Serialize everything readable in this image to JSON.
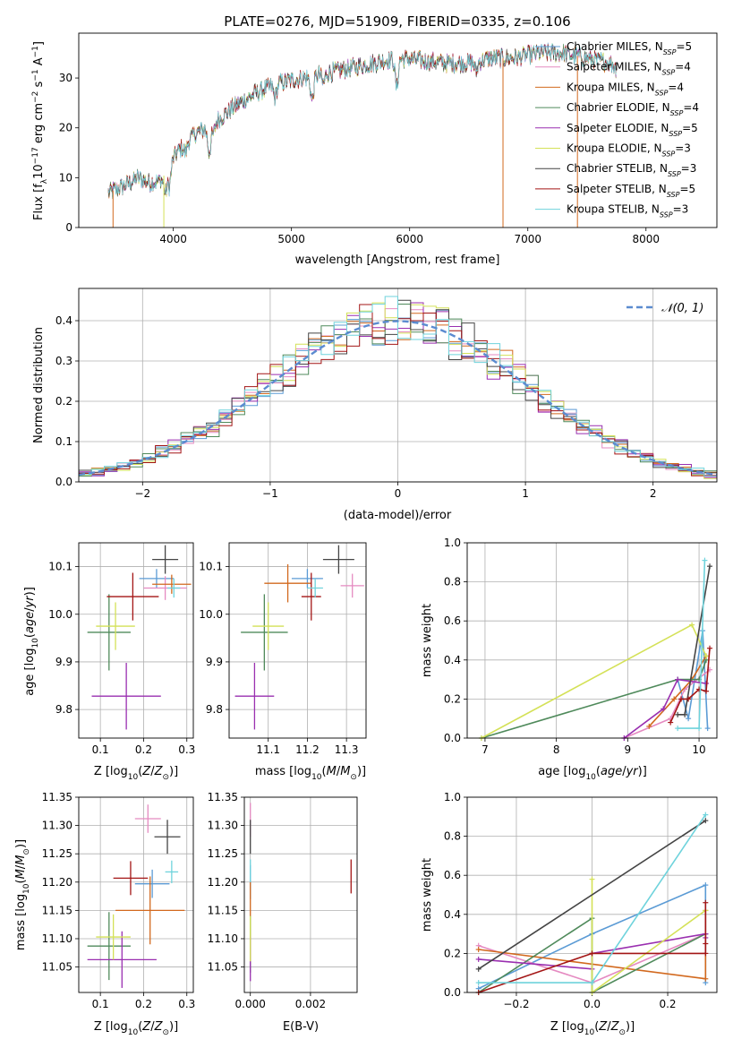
{
  "colors": {
    "miles_chabrier": "#5b9bd5",
    "miles_salpeter": "#e58ac1",
    "miles_kroupa": "#d2691e",
    "elodie_chabrier": "#4f8a5b",
    "elodie_salpeter": "#9a2fb0",
    "elodie_kroupa": "#d4e157",
    "stelib_chabrier": "#444444",
    "stelib_salpeter": "#a31515",
    "stelib_kroupa": "#6fd3dc",
    "gauss_line": "#5b8bd0",
    "grid": "#b0b0b0"
  },
  "chart_data": [
    {
      "id": "spectrum",
      "type": "line",
      "title": "PLATE=0276, MJD=51909, FIBERID=0335, z=0.106",
      "xlabel": "wavelength [Angstrom, rest frame]",
      "ylabel": "Flux [f_λ10^-17 erg cm^-2 s^-1 A^-1]",
      "xlim": [
        3200,
        8600
      ],
      "ylim": [
        0,
        39
      ],
      "xticks": [
        4000,
        5000,
        6000,
        7000,
        8000
      ],
      "yticks": [
        0,
        10,
        20,
        30
      ],
      "grid": false,
      "legend_position": "right",
      "legend": [
        {
          "label": "Chabrier MILES, N",
          "sub": "SSP",
          "tail": "=5",
          "color": "miles_chabrier"
        },
        {
          "label": "Salpeter MILES, N",
          "sub": "SSP",
          "tail": "=4",
          "color": "miles_salpeter"
        },
        {
          "label": "Kroupa MILES, N",
          "sub": "SSP",
          "tail": "=4",
          "color": "miles_kroupa"
        },
        {
          "label": "Chabrier ELODIE, N",
          "sub": "SSP",
          "tail": "=4",
          "color": "elodie_chabrier"
        },
        {
          "label": "Salpeter ELODIE, N",
          "sub": "SSP",
          "tail": "=5",
          "color": "elodie_salpeter"
        },
        {
          "label": "Kroupa ELODIE, N",
          "sub": "SSP",
          "tail": "=3",
          "color": "elodie_kroupa"
        },
        {
          "label": "Chabrier STELIB, N",
          "sub": "SSP",
          "tail": "=3",
          "color": "stelib_chabrier"
        },
        {
          "label": "Salpeter STELIB, N",
          "sub": "SSP",
          "tail": "=5",
          "color": "stelib_salpeter"
        },
        {
          "label": "Kroupa STELIB, N",
          "sub": "SSP",
          "tail": "=3",
          "color": "stelib_kroupa"
        }
      ],
      "continuum": {
        "x": [
          3450,
          3600,
          3700,
          3800,
          3900,
          4000,
          4100,
          4200,
          4300,
          4500,
          4700,
          4900,
          5100,
          5300,
          5500,
          5700,
          5900,
          6100,
          6300,
          6500,
          6700,
          6900,
          7100,
          7300,
          7400,
          7500,
          7600,
          7700,
          7750
        ],
        "y": [
          7,
          8.5,
          10,
          9,
          9.5,
          14,
          17,
          19,
          20,
          24,
          27,
          29,
          30,
          31,
          32,
          33,
          34,
          33.5,
          33,
          33,
          34,
          34,
          35,
          35,
          34.5,
          34,
          33.5,
          33,
          32
        ]
      },
      "absorption_lines": [
        {
          "x": 3934,
          "depth": 4
        },
        {
          "x": 3968,
          "depth": 4
        },
        {
          "x": 4102,
          "depth": 2
        },
        {
          "x": 4304,
          "depth": 5
        },
        {
          "x": 4340,
          "depth": 2
        },
        {
          "x": 4861,
          "depth": 2.5
        },
        {
          "x": 5175,
          "depth": 5
        },
        {
          "x": 5270,
          "depth": 2
        },
        {
          "x": 5890,
          "depth": 6
        },
        {
          "x": 6563,
          "depth": 2
        }
      ],
      "spikes": [
        {
          "x": 3490,
          "color": "miles_kroupa"
        },
        {
          "x": 3920,
          "color": "elodie_kroupa"
        },
        {
          "x": 6790,
          "color": "miles_kroupa"
        },
        {
          "x": 7420,
          "color": "miles_kroupa"
        }
      ]
    },
    {
      "id": "residuals",
      "type": "step",
      "xlabel": "(data-model)/error",
      "ylabel": "Normed distribution",
      "xlim": [
        -2.5,
        2.5
      ],
      "ylim": [
        0,
        0.48
      ],
      "xticks": [
        -2,
        -1,
        0,
        1,
        2
      ],
      "yticks": [
        0.0,
        0.1,
        0.2,
        0.3,
        0.4
      ],
      "grid": true,
      "legend_position": "top-right",
      "legend": [
        {
          "label": "𝒩(0, 1)",
          "color": "gauss_line",
          "dashed": true
        }
      ],
      "bin_width": 0.1
    },
    {
      "id": "age_vs_Z",
      "type": "errorbar",
      "xlabel": "Z [log10(Z/Z⊙)]",
      "ylabel": "age  [log10(age/yr)]",
      "xlim": [
        0.05,
        0.315
      ],
      "ylim": [
        9.74,
        10.15
      ],
      "xticks": [
        0.1,
        0.2,
        0.3
      ],
      "yticks": [
        9.8,
        9.9,
        10.0,
        10.1
      ],
      "grid": true,
      "points": [
        {
          "c": "miles_chabrier",
          "x": 0.23,
          "xe": 0.04,
          "y": 10.075,
          "ye": 0.02
        },
        {
          "c": "miles_salpeter",
          "x": 0.25,
          "xe": 0.05,
          "y": 10.055,
          "ye": 0.025
        },
        {
          "c": "miles_kroupa",
          "x": 0.265,
          "xe": 0.045,
          "y": 10.063,
          "ye": 0.02
        },
        {
          "c": "elodie_chabrier",
          "x": 0.12,
          "xe": 0.05,
          "y": 9.962,
          "ye": 0.08
        },
        {
          "c": "elodie_salpeter",
          "x": 0.16,
          "xe": 0.08,
          "y": 9.828,
          "ye": 0.07
        },
        {
          "c": "elodie_kroupa",
          "x": 0.135,
          "xe": 0.045,
          "y": 9.975,
          "ye": 0.05
        },
        {
          "c": "stelib_chabrier",
          "x": 0.25,
          "xe": 0.03,
          "y": 10.115,
          "ye": 0.03
        },
        {
          "c": "stelib_salpeter",
          "x": 0.175,
          "xe": 0.06,
          "y": 10.037,
          "ye": 0.05
        },
        {
          "c": "stelib_kroupa",
          "x": 0.27,
          "xe": 0.015,
          "y": 10.055,
          "ye": 0.02
        }
      ]
    },
    {
      "id": "age_vs_mass",
      "type": "errorbar",
      "xlabel": "mass [log10(M/M⊙)]",
      "ylabel": "",
      "xlim": [
        11.0,
        11.35
      ],
      "ylim": [
        9.74,
        10.15
      ],
      "xticks": [
        11.1,
        11.2,
        11.3
      ],
      "yticks": [
        9.8,
        9.9,
        10.0,
        10.1
      ],
      "grid": true,
      "points": [
        {
          "c": "miles_chabrier",
          "x": 11.2,
          "xe": 0.04,
          "y": 10.075,
          "ye": 0.02
        },
        {
          "c": "miles_salpeter",
          "x": 11.315,
          "xe": 0.03,
          "y": 10.06,
          "ye": 0.025
        },
        {
          "c": "miles_kroupa",
          "x": 11.15,
          "xe": 0.06,
          "y": 10.065,
          "ye": 0.04
        },
        {
          "c": "elodie_chabrier",
          "x": 11.09,
          "xe": 0.06,
          "y": 9.962,
          "ye": 0.08
        },
        {
          "c": "elodie_salpeter",
          "x": 11.065,
          "xe": 0.05,
          "y": 9.828,
          "ye": 0.07
        },
        {
          "c": "elodie_kroupa",
          "x": 11.1,
          "xe": 0.04,
          "y": 9.975,
          "ye": 0.05
        },
        {
          "c": "stelib_chabrier",
          "x": 11.28,
          "xe": 0.04,
          "y": 10.115,
          "ye": 0.03
        },
        {
          "c": "stelib_salpeter",
          "x": 11.21,
          "xe": 0.025,
          "y": 10.037,
          "ye": 0.05
        },
        {
          "c": "stelib_kroupa",
          "x": 11.22,
          "xe": 0.02,
          "y": 10.055,
          "ye": 0.02
        }
      ]
    },
    {
      "id": "weight_vs_age",
      "type": "line",
      "xlabel": "age  [log10(age/yr)]",
      "ylabel": "mass weight",
      "xlim": [
        6.75,
        10.25
      ],
      "ylim": [
        0,
        1.0
      ],
      "xticks": [
        7,
        8,
        9,
        10
      ],
      "yticks": [
        0.0,
        0.2,
        0.4,
        0.6,
        0.8,
        1.0
      ],
      "grid": true,
      "series": [
        {
          "c": "miles_chabrier",
          "x": [
            9.7,
            9.85,
            10.05,
            10.12
          ],
          "y": [
            0.3,
            0.1,
            0.55,
            0.05
          ]
        },
        {
          "c": "miles_salpeter",
          "x": [
            8.95,
            9.6,
            9.8,
            10.15
          ],
          "y": [
            0.0,
            0.1,
            0.25,
            0.35
          ]
        },
        {
          "c": "miles_kroupa",
          "x": [
            9.3,
            9.65,
            9.9,
            10.1
          ],
          "y": [
            0.06,
            0.2,
            0.3,
            0.42
          ]
        },
        {
          "c": "elodie_chabrier",
          "x": [
            6.95,
            9.7,
            10.0,
            10.1
          ],
          "y": [
            0.0,
            0.3,
            0.3,
            0.4
          ]
        },
        {
          "c": "elodie_salpeter",
          "x": [
            8.95,
            9.5,
            9.7,
            10.1
          ],
          "y": [
            0.0,
            0.15,
            0.3,
            0.28
          ]
        },
        {
          "c": "elodie_kroupa",
          "x": [
            6.95,
            9.9,
            10.1
          ],
          "y": [
            0.0,
            0.58,
            0.42
          ]
        },
        {
          "c": "stelib_chabrier",
          "x": [
            9.7,
            9.8,
            10.15
          ],
          "y": [
            0.12,
            0.12,
            0.88
          ]
        },
        {
          "c": "stelib_salpeter",
          "x": [
            9.6,
            9.75,
            9.85,
            10.0,
            10.1,
            10.15
          ],
          "y": [
            0.08,
            0.2,
            0.2,
            0.25,
            0.24,
            0.46
          ]
        },
        {
          "c": "stelib_kroupa",
          "x": [
            9.7,
            10.0,
            10.08
          ],
          "y": [
            0.05,
            0.05,
            0.91
          ]
        }
      ]
    },
    {
      "id": "mass_vs_Z",
      "type": "errorbar",
      "xlabel": "Z [log10(Z/Z⊙)]",
      "ylabel": "mass [log10(M/M⊙)]",
      "xlim": [
        0.05,
        0.315
      ],
      "ylim": [
        11.005,
        11.35
      ],
      "xticks": [
        0.1,
        0.2,
        0.3
      ],
      "yticks": [
        11.05,
        11.1,
        11.15,
        11.2,
        11.25,
        11.3,
        11.35
      ],
      "grid": true,
      "points": [
        {
          "c": "miles_chabrier",
          "x": 0.22,
          "xe": 0.04,
          "y": 11.197,
          "ye": 0.025
        },
        {
          "c": "miles_salpeter",
          "x": 0.21,
          "xe": 0.03,
          "y": 11.312,
          "ye": 0.025
        },
        {
          "c": "miles_kroupa",
          "x": 0.215,
          "xe": 0.08,
          "y": 11.15,
          "ye": 0.06
        },
        {
          "c": "elodie_chabrier",
          "x": 0.12,
          "xe": 0.05,
          "y": 11.087,
          "ye": 0.06
        },
        {
          "c": "elodie_salpeter",
          "x": 0.15,
          "xe": 0.08,
          "y": 11.063,
          "ye": 0.05
        },
        {
          "c": "elodie_kroupa",
          "x": 0.13,
          "xe": 0.04,
          "y": 11.103,
          "ye": 0.04
        },
        {
          "c": "stelib_chabrier",
          "x": 0.255,
          "xe": 0.03,
          "y": 11.28,
          "ye": 0.03
        },
        {
          "c": "stelib_salpeter",
          "x": 0.17,
          "xe": 0.04,
          "y": 11.207,
          "ye": 0.03
        },
        {
          "c": "stelib_kroupa",
          "x": 0.265,
          "xe": 0.015,
          "y": 11.218,
          "ye": 0.02
        }
      ]
    },
    {
      "id": "mass_vs_ebv",
      "type": "errorbar",
      "xlabel": "E(B-V)",
      "ylabel": "",
      "xlim": [
        -0.0002,
        0.00355
      ],
      "ylim": [
        11.005,
        11.35
      ],
      "xticks": [
        0.0,
        0.002
      ],
      "xtick_labels": [
        "0.000",
        "0.002"
      ],
      "yticks": [
        11.05,
        11.1,
        11.15,
        11.2,
        11.25,
        11.3,
        11.35
      ],
      "grid": true,
      "points": [
        {
          "c": "miles_chabrier",
          "x": 0.0,
          "xe": 0,
          "y": 11.2,
          "ye": 0.03
        },
        {
          "c": "miles_salpeter",
          "x": 0.0,
          "xe": 0,
          "y": 11.31,
          "ye": 0.03
        },
        {
          "c": "miles_kroupa",
          "x": 0.0,
          "xe": 0,
          "y": 11.15,
          "ye": 0.05
        },
        {
          "c": "elodie_chabrier",
          "x": 0.0,
          "xe": 0,
          "y": 11.09,
          "ye": 0.05
        },
        {
          "c": "elodie_salpeter",
          "x": 0.0,
          "xe": 0,
          "y": 11.065,
          "ye": 0.04
        },
        {
          "c": "elodie_kroupa",
          "x": 0.0,
          "xe": 0,
          "y": 11.1,
          "ye": 0.04
        },
        {
          "c": "stelib_chabrier",
          "x": 0.0,
          "xe": 0,
          "y": 11.28,
          "ye": 0.03
        },
        {
          "c": "stelib_salpeter",
          "x": 0.00335,
          "xe": 0,
          "y": 11.21,
          "ye": 0.03
        },
        {
          "c": "stelib_kroupa",
          "x": 0.0,
          "xe": 0,
          "y": 11.22,
          "ye": 0.02
        }
      ]
    },
    {
      "id": "weight_vs_Z",
      "type": "line",
      "xlabel": "Z [log10(Z/Z⊙)]",
      "ylabel": "mass weight",
      "xlim": [
        -0.33,
        0.33
      ],
      "ylim": [
        0,
        1.0
      ],
      "xticks": [
        -0.2,
        0.0,
        0.2
      ],
      "yticks": [
        0.0,
        0.2,
        0.4,
        0.6,
        0.8,
        1.0
      ],
      "grid": true,
      "series": [
        {
          "c": "miles_chabrier",
          "x": [
            -0.3,
            0.0,
            0.3,
            0.3
          ],
          "y": [
            0.02,
            0.3,
            0.55,
            0.05
          ]
        },
        {
          "c": "miles_salpeter",
          "x": [
            -0.3,
            0.0,
            0.3
          ],
          "y": [
            0.24,
            0.05,
            0.3
          ]
        },
        {
          "c": "miles_kroupa",
          "x": [
            -0.3,
            0.3,
            0.3
          ],
          "y": [
            0.22,
            0.07,
            0.42
          ]
        },
        {
          "c": "elodie_chabrier",
          "x": [
            -0.3,
            0.0,
            0.0,
            0.3,
            0.3
          ],
          "y": [
            0.0,
            0.38,
            0.0,
            0.3,
            0.3
          ]
        },
        {
          "c": "elodie_salpeter",
          "x": [
            -0.3,
            0.0,
            0.0,
            0.3,
            0.3
          ],
          "y": [
            0.17,
            0.12,
            0.2,
            0.3,
            0.28
          ]
        },
        {
          "c": "elodie_kroupa",
          "x": [
            0.0,
            0.0,
            0.3
          ],
          "y": [
            0.58,
            0.0,
            0.42
          ]
        },
        {
          "c": "stelib_chabrier",
          "x": [
            -0.3,
            0.3
          ],
          "y": [
            0.12,
            0.88
          ]
        },
        {
          "c": "stelib_salpeter",
          "x": [
            -0.3,
            0.0,
            0.3,
            0.3,
            0.3
          ],
          "y": [
            0.0,
            0.2,
            0.2,
            0.46,
            0.25
          ]
        },
        {
          "c": "stelib_kroupa",
          "x": [
            -0.3,
            0.0,
            0.3
          ],
          "y": [
            0.05,
            0.05,
            0.91
          ]
        }
      ]
    }
  ]
}
